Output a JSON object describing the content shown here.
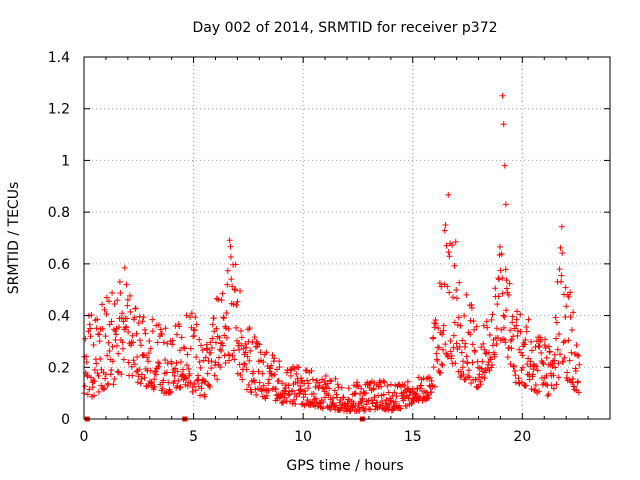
{
  "chart_data": {
    "type": "scatter",
    "title": "Day 002 of 2014, SRMTID for receiver p372",
    "xlabel": "GPS time / hours",
    "ylabel": "SRMTID / TECUs",
    "xlim": [
      0,
      24
    ],
    "ylim": [
      0,
      1.4
    ],
    "x_ticks": [
      0,
      5,
      10,
      15,
      20
    ],
    "y_ticks": [
      0,
      0.2,
      0.4,
      0.6,
      0.8,
      1,
      1.2,
      1.4
    ],
    "x_tick_labels": [
      "0",
      "5",
      "10",
      "15",
      "20"
    ],
    "y_tick_labels": [
      "0",
      "0.2",
      "0.4",
      "0.6",
      "0.8",
      "1",
      "1.2",
      "1.4"
    ],
    "grid": true,
    "marker": "+",
    "color": "#ff0000",
    "points_step_hours": 0.02,
    "envelope": {
      "x": [
        0.0,
        0.3,
        0.6,
        1.0,
        1.5,
        1.8,
        2.1,
        2.5,
        3.0,
        3.5,
        4.0,
        4.5,
        5.0,
        5.5,
        6.0,
        6.4,
        6.6,
        6.9,
        7.3,
        8.0,
        9.0,
        10.0,
        11.0,
        12.0,
        12.8,
        13.5,
        14.2,
        15.0,
        15.8,
        16.0,
        16.3,
        16.6,
        16.9,
        17.3,
        18.0,
        18.6,
        19.0,
        19.3,
        19.7,
        20.3,
        21.0,
        21.4,
        21.8,
        22.3,
        22.6
      ],
      "low": [
        0.1,
        0.08,
        0.1,
        0.12,
        0.14,
        0.16,
        0.14,
        0.14,
        0.12,
        0.1,
        0.1,
        0.12,
        0.1,
        0.08,
        0.14,
        0.2,
        0.22,
        0.18,
        0.12,
        0.08,
        0.06,
        0.05,
        0.04,
        0.03,
        0.03,
        0.04,
        0.03,
        0.06,
        0.08,
        0.12,
        0.18,
        0.24,
        0.2,
        0.14,
        0.12,
        0.2,
        0.3,
        0.25,
        0.14,
        0.12,
        0.08,
        0.1,
        0.18,
        0.12,
        0.1
      ],
      "high": [
        0.3,
        0.45,
        0.42,
        0.5,
        0.55,
        0.65,
        0.5,
        0.42,
        0.4,
        0.38,
        0.34,
        0.4,
        0.42,
        0.3,
        0.45,
        0.6,
        0.71,
        0.62,
        0.4,
        0.3,
        0.22,
        0.2,
        0.17,
        0.14,
        0.15,
        0.15,
        0.14,
        0.15,
        0.2,
        0.4,
        0.6,
        0.9,
        0.78,
        0.52,
        0.38,
        0.4,
        0.72,
        0.6,
        0.45,
        0.42,
        0.3,
        0.4,
        0.77,
        0.45,
        0.25
      ]
    },
    "outliers": [
      {
        "x": 19.1,
        "y": 1.25
      },
      {
        "x": 19.15,
        "y": 1.14
      },
      {
        "x": 19.2,
        "y": 0.98
      },
      {
        "x": 19.25,
        "y": 0.83
      }
    ],
    "baseline_markers": [
      {
        "x": 0.15,
        "y": 0
      },
      {
        "x": 4.6,
        "y": 0
      },
      {
        "x": 12.7,
        "y": 0
      }
    ]
  }
}
